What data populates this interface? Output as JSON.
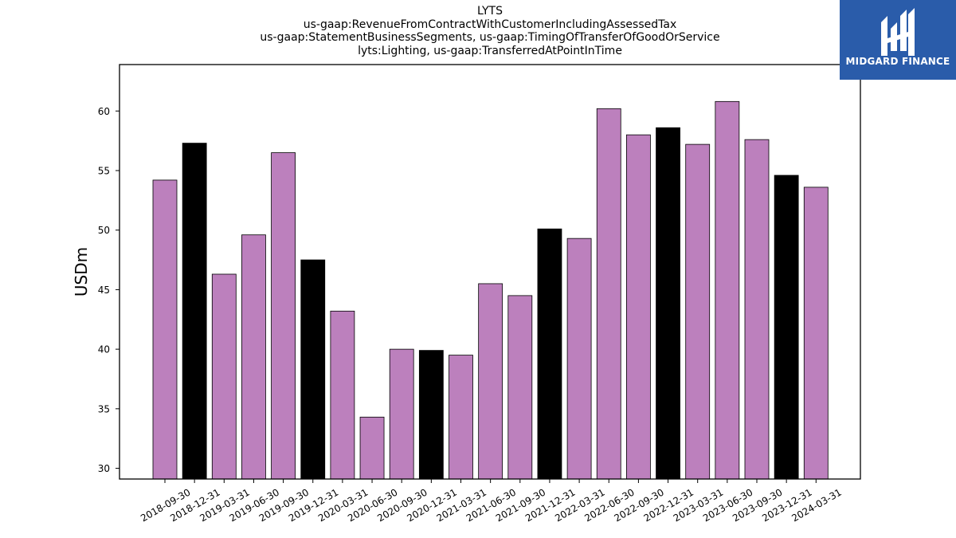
{
  "title_lines": [
    "LYTS",
    "us-gaap:RevenueFromContractWithCustomerIncludingAssessedTax",
    "us-gaap:StatementBusinessSegments, us-gaap:TimingOfTransferOfGoodOrService",
    "lyts:Lighting, us-gaap:TransferredAtPointInTime"
  ],
  "logo": {
    "text": "MIDGARD FINANCE",
    "background": "#2a5caa"
  },
  "colors": {
    "regular": "#bc80bd",
    "highlight": "#000000",
    "edge": "#000000"
  },
  "chart_data": {
    "type": "bar",
    "title": "LYTS\nus-gaap:RevenueFromContractWithCustomerIncludingAssessedTax\nus-gaap:StatementBusinessSegments, us-gaap:TimingOfTransferOfGoodOrService\nlyts:Lighting, us-gaap:TransferredAtPointInTime",
    "xlabel": "",
    "ylabel": "USDm",
    "ylim": [
      29.1,
      63.9
    ],
    "yticks": [
      30,
      35,
      40,
      45,
      50,
      55,
      60
    ],
    "grid": false,
    "categories": [
      "2018-09-30",
      "2018-12-31",
      "2019-03-31",
      "2019-06-30",
      "2019-09-30",
      "2019-12-31",
      "2020-03-31",
      "2020-06-30",
      "2020-09-30",
      "2020-12-31",
      "2021-03-31",
      "2021-06-30",
      "2021-09-30",
      "2021-12-31",
      "2022-03-31",
      "2022-06-30",
      "2022-09-30",
      "2022-12-31",
      "2023-03-31",
      "2023-06-30",
      "2023-09-30",
      "2023-12-31",
      "2024-03-31"
    ],
    "values": [
      54.2,
      57.3,
      46.3,
      49.6,
      56.5,
      47.5,
      43.2,
      34.3,
      40.0,
      39.9,
      39.5,
      45.5,
      44.5,
      50.1,
      49.3,
      60.2,
      58.0,
      58.6,
      57.2,
      60.8,
      57.6,
      54.6,
      53.6
    ],
    "highlighted": [
      false,
      true,
      false,
      false,
      false,
      true,
      false,
      false,
      false,
      true,
      false,
      false,
      false,
      true,
      false,
      false,
      false,
      true,
      false,
      false,
      false,
      true,
      false
    ]
  }
}
